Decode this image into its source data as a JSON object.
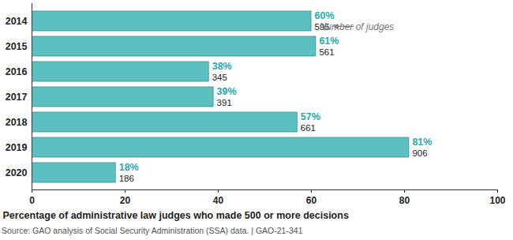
{
  "chart_data": {
    "type": "bar",
    "orientation": "horizontal",
    "categories": [
      "2014",
      "2015",
      "2016",
      "2017",
      "2018",
      "2019",
      "2020"
    ],
    "values": [
      60,
      61,
      38,
      39,
      57,
      81,
      18
    ],
    "value_labels": [
      "60%",
      "61%",
      "38%",
      "39%",
      "57%",
      "81%",
      "18%"
    ],
    "judges": [
      595,
      561,
      345,
      391,
      661,
      906,
      186
    ],
    "annotation": "Number of judges",
    "color": "#5cbfc0",
    "data_labels": true,
    "xlabel": "Percentage of administrative law judges who made 500 or more decisions",
    "xlim": [
      0,
      100
    ],
    "xticks": [
      0,
      20,
      40,
      60,
      80,
      100
    ],
    "grid": false,
    "caption": "Source: GAO analysis of Social Security Administration (SSA) data.  |  GAO-21-341"
  }
}
